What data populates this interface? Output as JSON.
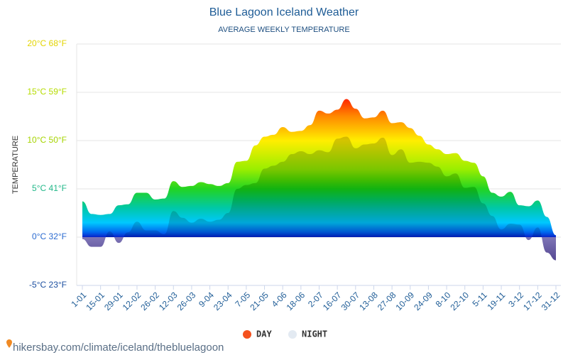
{
  "chart_data": {
    "type": "area",
    "title": "Blue Lagoon Iceland Weather",
    "subtitle": "AVERAGE WEEKLY TEMPERATURE",
    "y_label": "TEMPERATURE",
    "source": "hikersbay.com/climate/iceland/thebluelagoon",
    "categories": [
      "1-01",
      null,
      "15-01",
      null,
      "29-01",
      null,
      "12-02",
      null,
      "26-02",
      null,
      "12-03",
      null,
      "26-03",
      null,
      "9-04",
      null,
      "23-04",
      null,
      "7-05",
      null,
      "21-05",
      null,
      "4-06",
      null,
      "18-06",
      null,
      "2-07",
      null,
      "16-07",
      null,
      "30-07",
      null,
      "13-08",
      null,
      "27-08",
      null,
      "10-09",
      null,
      "24-09",
      null,
      "8-10",
      null,
      "22-10",
      null,
      "5-11",
      null,
      "19-11",
      null,
      "3-12",
      null,
      "17-12",
      null,
      "31-12"
    ],
    "series": [
      {
        "name": "DAY",
        "color": "#f4511e",
        "values": [
          3.7,
          2.4,
          2.3,
          2.4,
          3.3,
          3.4,
          4.6,
          4.6,
          3.9,
          4.0,
          5.8,
          5.2,
          5.3,
          5.7,
          5.5,
          5.3,
          5.6,
          7.8,
          7.9,
          9.5,
          10.4,
          10.6,
          11.4,
          10.9,
          11.0,
          11.6,
          13.1,
          12.8,
          13.2,
          14.3,
          13.3,
          12.3,
          12.4,
          13.1,
          11.8,
          11.9,
          11.3,
          10.5,
          9.6,
          9.1,
          8.6,
          8.7,
          7.9,
          7.7,
          6.3,
          4.6,
          4.2,
          4.7,
          3.3,
          3.2,
          3.8,
          2.1,
          0.2
        ]
      },
      {
        "name": "NIGHT",
        "color": "#e3eaf2",
        "values": [
          -0.2,
          -1.0,
          -1.0,
          0.6,
          -0.6,
          0.5,
          1.6,
          0.7,
          0.7,
          0.3,
          2.7,
          2.0,
          1.5,
          1.9,
          1.6,
          1.8,
          2.5,
          5.0,
          5.4,
          5.6,
          7.1,
          7.4,
          7.8,
          8.6,
          8.9,
          8.6,
          9.0,
          8.8,
          10.2,
          10.4,
          9.2,
          9.6,
          9.7,
          10.3,
          8.5,
          9.1,
          7.7,
          7.8,
          7.7,
          7.3,
          6.3,
          6.6,
          5.1,
          5.2,
          3.5,
          2.2,
          0.8,
          1.4,
          1.3,
          -0.3,
          1.0,
          -1.6,
          -2.4
        ]
      }
    ],
    "ylim": [
      -5,
      20
    ],
    "yticks": [
      {
        "value": -5,
        "label": "-5°C 23°F"
      },
      {
        "value": 0,
        "label": "0°C 32°F"
      },
      {
        "value": 5,
        "label": "5°C 41°F"
      },
      {
        "value": 10,
        "label": "10°C 50°F"
      },
      {
        "value": 15,
        "label": "15°C 59°F"
      },
      {
        "value": 20,
        "label": "20°C 68°F"
      }
    ],
    "ytick_colors": [
      "#1c4fa0",
      "#2a6ad0",
      "#22b889",
      "#a6d400",
      "#b6dc00",
      "#e3d400"
    ],
    "colorscale": [
      [
        15,
        "#ff0000"
      ],
      [
        12.5,
        "#ff8a00"
      ],
      [
        10,
        "#ffee00"
      ],
      [
        7,
        "#99ee00"
      ],
      [
        5,
        "#22d422"
      ],
      [
        3,
        "#00c8a8"
      ],
      [
        1.5,
        "#00c8ff"
      ],
      [
        0.5,
        "#0066ee"
      ],
      [
        0,
        "#0a22c8"
      ],
      [
        0,
        "#9a90d8"
      ],
      [
        -3,
        "#5a4aa0"
      ]
    ],
    "grid": true,
    "legend": "bottom"
  }
}
